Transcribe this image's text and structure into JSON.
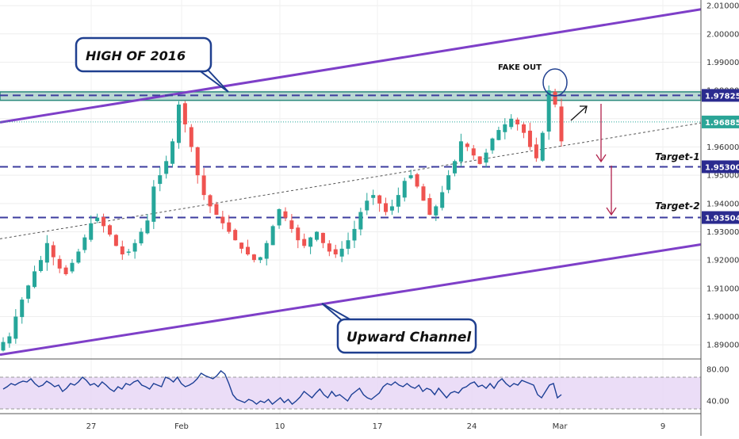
{
  "chart_data": {
    "type": "candlestick",
    "x_ticks": [
      "27",
      "Feb",
      "10",
      "17",
      "24",
      "Mar",
      "9"
    ],
    "y_ticks": [
      "2.01000",
      "2.00000",
      "1.99000",
      "1.98000",
      "1.97000",
      "1.96000",
      "1.95000",
      "1.94000",
      "1.93000",
      "1.92000",
      "1.91000",
      "1.90000",
      "1.89000"
    ],
    "y_ticks_values": [
      2.01,
      2.0,
      1.99,
      1.98,
      1.97,
      1.96,
      1.95,
      1.94,
      1.93,
      1.92,
      1.91,
      1.9,
      1.89
    ],
    "ylim": [
      1.885,
      2.012
    ],
    "levels": [
      {
        "label": "1.97825",
        "value": 1.97825,
        "style": "dashed",
        "color": "#3d3d9f"
      },
      {
        "label": "1.96885",
        "value": 1.96885,
        "style": "dotted",
        "color": "#26a69a"
      },
      {
        "label": "1.95300",
        "value": 1.953,
        "style": "dashed",
        "color": "#3d3d9f"
      },
      {
        "label": "1.93504",
        "value": 1.93504,
        "style": "dashed",
        "color": "#3d3d9f"
      }
    ],
    "resistance_zone": [
      1.9765,
      1.9795
    ],
    "channel_upper": [
      [
        0,
        1.9687
      ],
      [
        1,
        2.0087
      ]
    ],
    "channel_lower": [
      [
        0,
        1.8865
      ],
      [
        1,
        1.9255
      ]
    ],
    "dotted_trend": [
      [
        0,
        1.9275
      ],
      [
        1,
        1.9685
      ]
    ],
    "annotations": {
      "high_2016": "HIGH OF 2016",
      "upward_channel": "Upward Channel",
      "fake_out": "FAKE OUT",
      "target1": "Target-1",
      "target2": "Target-2"
    },
    "close_path": [
      1.891,
      1.893,
      1.9,
      1.906,
      1.911,
      1.916,
      1.92,
      1.926,
      1.921,
      1.917,
      1.915,
      1.919,
      1.923,
      1.928,
      1.933,
      1.935,
      1.932,
      1.929,
      1.925,
      1.922,
      1.923,
      1.926,
      1.93,
      1.934,
      1.946,
      1.95,
      1.955,
      1.962,
      1.975,
      1.968,
      1.96,
      1.95,
      1.943,
      1.939,
      1.936,
      1.933,
      1.93,
      1.927,
      1.924,
      1.922,
      1.92,
      1.921,
      1.926,
      1.932,
      1.938,
      1.935,
      1.931,
      1.927,
      1.925,
      1.928,
      1.93,
      1.926,
      1.923,
      1.922,
      1.924,
      1.927,
      1.931,
      1.937,
      1.941,
      1.943,
      1.94,
      1.937,
      1.939,
      1.943,
      1.948,
      1.95,
      1.946,
      1.941,
      1.936,
      1.939,
      1.944,
      1.95,
      1.955,
      1.962,
      1.96,
      1.957,
      1.954,
      1.958,
      1.963,
      1.966,
      1.968,
      1.97,
      1.968,
      1.965,
      1.96,
      1.956,
      1.965,
      1.98,
      1.975,
      1.962
    ],
    "rsi": {
      "ticks": [
        "80.00",
        "40.00"
      ],
      "tick_values": [
        80,
        40
      ],
      "ylim": [
        25,
        90
      ],
      "band": [
        30,
        70
      ],
      "values": [
        55,
        58,
        62,
        60,
        63,
        65,
        64,
        68,
        62,
        58,
        60,
        65,
        62,
        58,
        60,
        52,
        56,
        62,
        60,
        64,
        70,
        66,
        60,
        62,
        58,
        64,
        60,
        55,
        52,
        58,
        55,
        62,
        60,
        64,
        66,
        60,
        58,
        55,
        62,
        60,
        58,
        70,
        68,
        64,
        70,
        62,
        58,
        60,
        63,
        68,
        75,
        72,
        70,
        68,
        72,
        78,
        74,
        62,
        48,
        42,
        40,
        38,
        42,
        40,
        36,
        40,
        38,
        42,
        36,
        40,
        44,
        38,
        42,
        36,
        40,
        45,
        52,
        48,
        44,
        50,
        55,
        48,
        44,
        52,
        46,
        48,
        44,
        40,
        48,
        52,
        56,
        48,
        44,
        42,
        46,
        50,
        58,
        62,
        60,
        64,
        60,
        58,
        62,
        58,
        56,
        60,
        52,
        56,
        54,
        48,
        56,
        50,
        44,
        50,
        52,
        50,
        56,
        58,
        62,
        64,
        58,
        60,
        56,
        62,
        56,
        64,
        68,
        62,
        58,
        62,
        60,
        66,
        64,
        62,
        60,
        48,
        44,
        52,
        60,
        62,
        44,
        48
      ]
    }
  }
}
